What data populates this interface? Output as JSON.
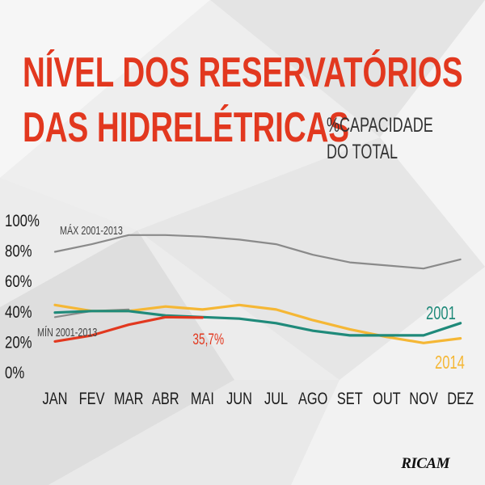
{
  "title": {
    "line1": "NÍVEL DOS RESERVATÓRIOS",
    "line2": "DAS HIDRELÉTRICAS",
    "subtitle_line1": "%CAPACIDADE",
    "subtitle_line2": "DO TOTAL"
  },
  "logo": "RICAM",
  "colors": {
    "title": "#e2381f",
    "max": "#8a8a8a",
    "min": "#8a8a8a",
    "y2001": "#1f8a7a",
    "y2014": "#f5b735",
    "current": "#e2381f"
  },
  "chart_data": {
    "type": "line",
    "categories": [
      "JAN",
      "FEV",
      "MAR",
      "ABR",
      "MAI",
      "JUN",
      "JUL",
      "AGO",
      "SET",
      "OUT",
      "NOV",
      "DEZ"
    ],
    "y_ticks": [
      "100%",
      "80%",
      "60%",
      "40%",
      "20%",
      "0%"
    ],
    "ylim": [
      0,
      100
    ],
    "grid": false,
    "series": [
      {
        "key": "max",
        "name": "MÁX 2001-2013",
        "values": [
          79,
          84,
          90,
          90,
          89,
          87,
          84,
          77,
          72,
          70,
          68,
          74
        ]
      },
      {
        "key": "min",
        "name": "MÍN 2001-2013",
        "values": [
          36,
          40,
          41,
          null,
          null,
          null,
          null,
          null,
          null,
          null,
          null,
          null
        ]
      },
      {
        "key": "y2001",
        "name": "2001",
        "values": [
          39,
          40,
          40,
          37,
          36,
          35,
          32,
          27,
          24,
          24,
          24,
          32
        ]
      },
      {
        "key": "y2014",
        "name": "2014",
        "values": [
          44,
          40,
          40,
          43,
          41,
          44,
          41,
          34,
          28,
          23,
          19,
          22
        ]
      },
      {
        "key": "current",
        "name": "",
        "values": [
          20,
          24,
          31,
          36,
          35.7,
          null,
          null,
          null,
          null,
          null,
          null,
          null
        ]
      }
    ],
    "annotations": {
      "current_value": "35,7%"
    }
  }
}
